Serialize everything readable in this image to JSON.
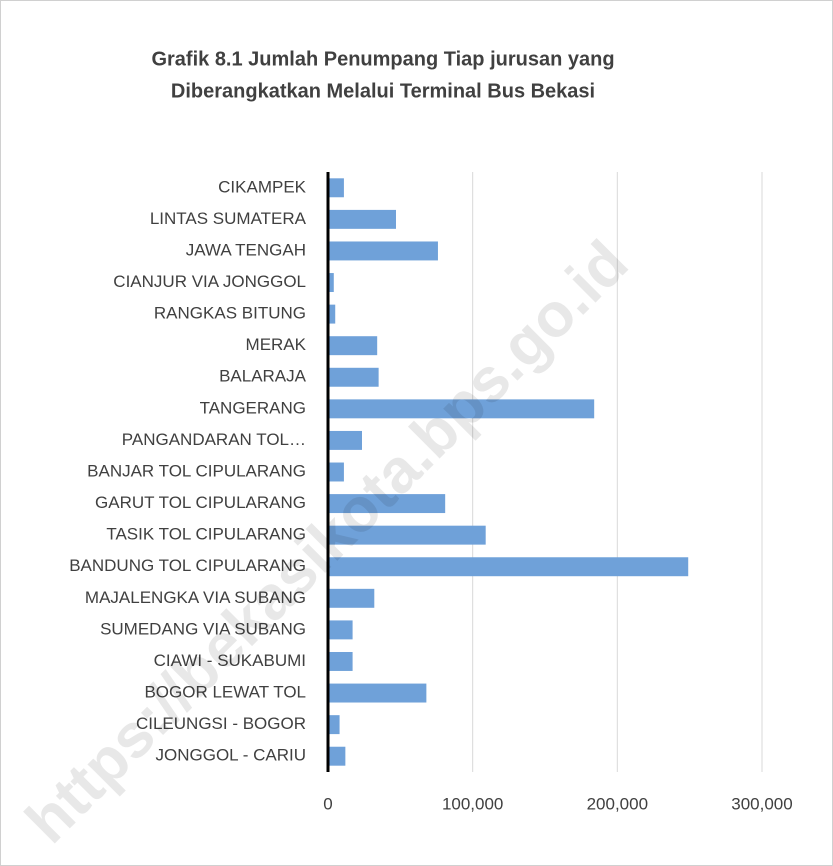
{
  "chart_data": {
    "type": "bar",
    "orientation": "horizontal",
    "title": [
      "Grafik 8.1 Jumlah Penumpang Tiap jurusan yang",
      "Diberangkatkan Melalui Terminal Bus Bekasi"
    ],
    "watermark": "https://bekasikota.bps.go.id",
    "categories": [
      "CIKAMPEK",
      "LINTAS SUMATERA",
      "JAWA TENGAH",
      "CIANJUR VIA JONGGOL",
      "RANGKAS BITUNG",
      "MERAK",
      "BALARAJA",
      "TANGERANG",
      "PANGANDARAN TOL…",
      "BANJAR TOL CIPULARANG",
      "GARUT TOL CIPULARANG",
      "TASIK TOL CIPULARANG",
      "BANDUNG TOL CIPULARANG",
      "MAJALENGKA VIA SUBANG",
      "SUMEDANG VIA SUBANG",
      "CIAWI - SUKABUMI",
      "BOGOR LEWAT TOL",
      "CILEUNGSI - BOGOR",
      "JONGGOL - CARIU"
    ],
    "values": [
      11000,
      47000,
      76000,
      4000,
      5000,
      34000,
      35000,
      184000,
      23500,
      11000,
      81000,
      109000,
      249000,
      32000,
      17000,
      17000,
      68000,
      8000,
      12000
    ],
    "color": "#6fa1d9",
    "xlim": [
      0,
      300000
    ],
    "xticks": [
      0,
      {
        "value": 100000,
        "label": "100,000"
      },
      {
        "value": 200000,
        "label": "200,000"
      },
      {
        "value": 300000,
        "label": "300,000"
      }
    ],
    "grid": true
  }
}
